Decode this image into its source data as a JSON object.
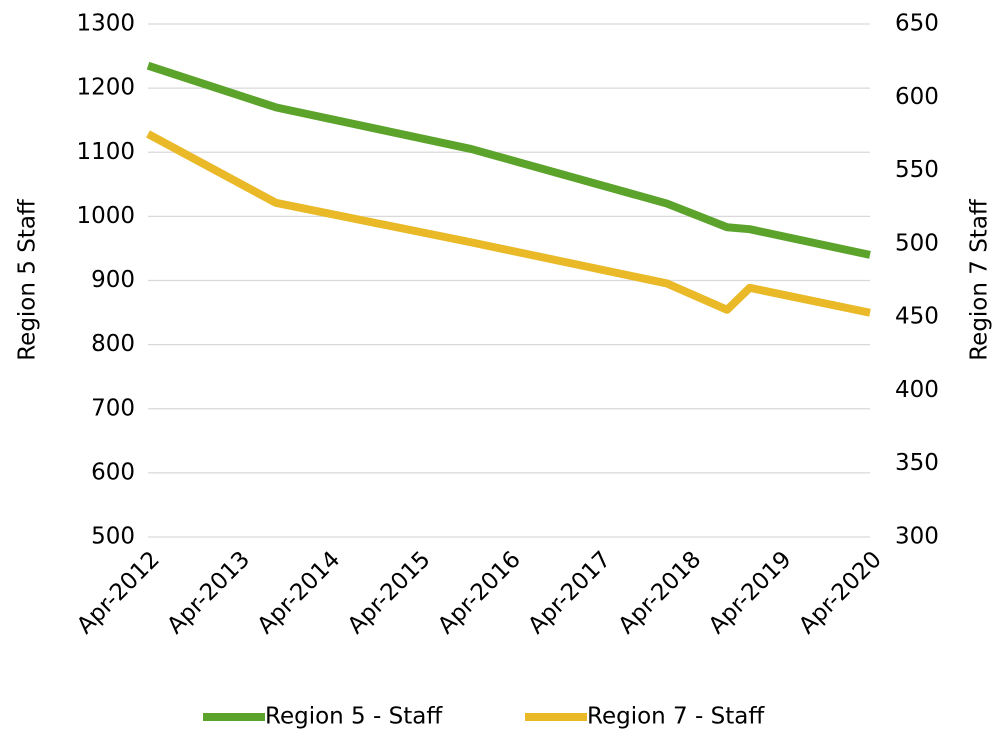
{
  "chart_data": {
    "type": "line",
    "y_label": "Region 5 Staff",
    "y2_label": "Region 7 Staff",
    "x": [
      "2012-04",
      "2013-09",
      "2015-11",
      "2018-01",
      "2018-09",
      "2018-12",
      "2020-04"
    ],
    "series": [
      {
        "name": "Region 5 - Staff",
        "color": "#5ba32b",
        "values": [
          1235,
          1170,
          1105,
          1020,
          983,
          980,
          940
        ]
      },
      {
        "name": "Region 7 - Staff",
        "color": "#e9b927",
        "axis": "y2",
        "values": [
          575,
          528,
          501,
          473,
          455,
          470,
          453
        ]
      }
    ],
    "xlim": [
      "2012-04",
      "2020-04"
    ],
    "xticks": [
      {
        "value": "2012-04",
        "label": "Apr-2012"
      },
      {
        "value": "2013-04",
        "label": "Apr-2013"
      },
      {
        "value": "2014-04",
        "label": "Apr-2014"
      },
      {
        "value": "2015-04",
        "label": "Apr-2015"
      },
      {
        "value": "2016-04",
        "label": "Apr-2016"
      },
      {
        "value": "2017-04",
        "label": "Apr-2017"
      },
      {
        "value": "2018-04",
        "label": "Apr-2018"
      },
      {
        "value": "2019-04",
        "label": "Apr-2019"
      },
      {
        "value": "2020-04",
        "label": "Apr-2020"
      }
    ],
    "ylim": [
      500,
      1300
    ],
    "yticks": [
      500,
      600,
      700,
      800,
      900,
      1000,
      1100,
      1200,
      1300
    ],
    "y2lim": [
      300,
      650
    ],
    "y2ticks": [
      300,
      350,
      400,
      450,
      500,
      550,
      600,
      650
    ],
    "grid": true,
    "legend": "bottom"
  }
}
